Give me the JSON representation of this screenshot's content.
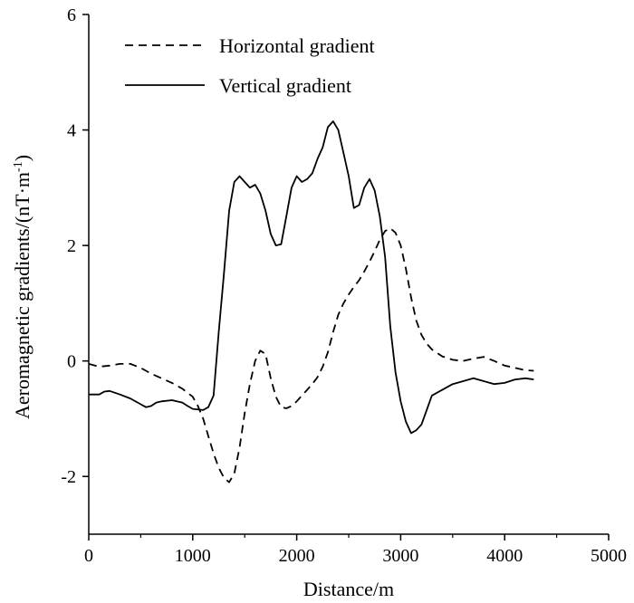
{
  "chart_data": {
    "type": "line",
    "xlabel": "Distance/m",
    "ylabel": "Aeromagnetic gradients/(nT·m",
    "ylabel_sup": "-1",
    "ylabel_close": ")",
    "xlim": [
      0,
      5000
    ],
    "ylim": [
      -3,
      6
    ],
    "xticks": [
      0,
      1000,
      2000,
      3000,
      4000,
      5000
    ],
    "xtick_labels": [
      "0",
      "1000",
      "2000",
      "3000",
      "4000",
      "5000"
    ],
    "yticks": [
      -2,
      0,
      2,
      4,
      6
    ],
    "ytick_labels": [
      "-2",
      "0",
      "2",
      "4",
      "6"
    ],
    "grid": false,
    "legend": "top-left",
    "series": [
      {
        "name": "Horizontal gradient",
        "style": "dashed",
        "x": [
          0,
          100,
          200,
          300,
          400,
          500,
          600,
          700,
          800,
          900,
          1000,
          1050,
          1100,
          1150,
          1200,
          1250,
          1300,
          1350,
          1400,
          1450,
          1500,
          1550,
          1600,
          1650,
          1700,
          1750,
          1800,
          1850,
          1900,
          1950,
          2000,
          2050,
          2100,
          2150,
          2200,
          2250,
          2300,
          2350,
          2400,
          2450,
          2500,
          2550,
          2600,
          2650,
          2700,
          2750,
          2800,
          2850,
          2900,
          2950,
          3000,
          3050,
          3100,
          3150,
          3200,
          3250,
          3300,
          3400,
          3500,
          3600,
          3700,
          3800,
          3900,
          4000,
          4100,
          4200,
          4280
        ],
        "y": [
          -0.05,
          -0.1,
          -0.08,
          -0.05,
          -0.05,
          -0.12,
          -0.22,
          -0.3,
          -0.38,
          -0.48,
          -0.62,
          -0.78,
          -1.0,
          -1.3,
          -1.6,
          -1.85,
          -2.02,
          -2.1,
          -1.95,
          -1.5,
          -0.9,
          -0.4,
          0.0,
          0.18,
          0.12,
          -0.3,
          -0.62,
          -0.8,
          -0.82,
          -0.78,
          -0.7,
          -0.6,
          -0.5,
          -0.4,
          -0.28,
          -0.1,
          0.15,
          0.5,
          0.8,
          1.0,
          1.15,
          1.28,
          1.4,
          1.55,
          1.72,
          1.9,
          2.1,
          2.25,
          2.3,
          2.22,
          2.0,
          1.6,
          1.1,
          0.7,
          0.45,
          0.3,
          0.2,
          0.08,
          0.02,
          0.0,
          0.04,
          0.07,
          0.0,
          -0.08,
          -0.12,
          -0.16,
          -0.17
        ]
      },
      {
        "name": "Vertical gradient",
        "style": "solid",
        "x": [
          0,
          100,
          150,
          200,
          300,
          400,
          500,
          550,
          600,
          650,
          700,
          800,
          900,
          950,
          1000,
          1100,
          1150,
          1200,
          1250,
          1300,
          1350,
          1400,
          1450,
          1500,
          1550,
          1600,
          1650,
          1700,
          1750,
          1800,
          1850,
          1900,
          1950,
          2000,
          2050,
          2100,
          2150,
          2200,
          2250,
          2300,
          2350,
          2400,
          2450,
          2500,
          2550,
          2600,
          2650,
          2700,
          2750,
          2800,
          2850,
          2900,
          2950,
          3000,
          3050,
          3100,
          3150,
          3200,
          3250,
          3300,
          3350,
          3400,
          3500,
          3600,
          3700,
          3800,
          3900,
          4000,
          4100,
          4200,
          4280
        ],
        "y": [
          -0.58,
          -0.58,
          -0.53,
          -0.52,
          -0.58,
          -0.65,
          -0.75,
          -0.8,
          -0.78,
          -0.72,
          -0.7,
          -0.68,
          -0.72,
          -0.78,
          -0.83,
          -0.85,
          -0.8,
          -0.6,
          0.5,
          1.5,
          2.6,
          3.1,
          3.2,
          3.1,
          3.0,
          3.05,
          2.9,
          2.6,
          2.2,
          2.0,
          2.02,
          2.5,
          3.0,
          3.2,
          3.1,
          3.15,
          3.25,
          3.5,
          3.7,
          4.05,
          4.15,
          4.0,
          3.6,
          3.2,
          2.65,
          2.7,
          3.0,
          3.15,
          2.95,
          2.5,
          1.8,
          0.6,
          -0.2,
          -0.7,
          -1.05,
          -1.25,
          -1.2,
          -1.1,
          -0.85,
          -0.6,
          -0.55,
          -0.5,
          -0.4,
          -0.35,
          -0.3,
          -0.35,
          -0.4,
          -0.38,
          -0.32,
          -0.3,
          -0.32
        ]
      }
    ]
  }
}
